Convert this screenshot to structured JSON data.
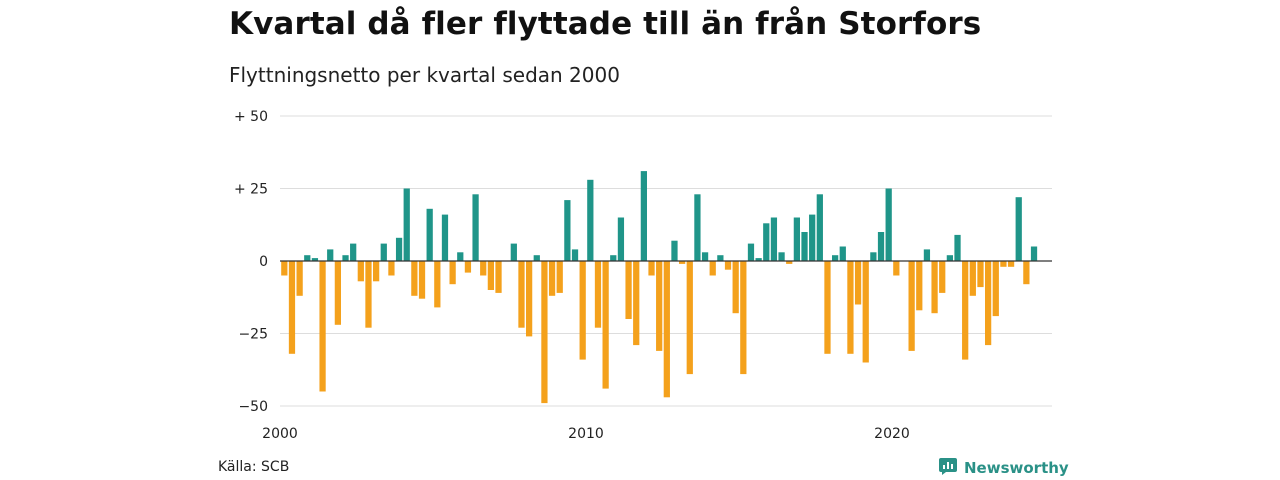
{
  "title": "Kvartal då fler flyttade till än från Storfors",
  "subtitle": "Flyttningsnetto per kvartal sedan 2000",
  "source": "Källa: SCB",
  "brand": {
    "name": "Newsworthy",
    "icon": "newsworthy-logo-icon"
  },
  "colors": {
    "positive": "#1f9589",
    "negative": "#f4a11c",
    "grid": "#dddddd",
    "zero": "#333333",
    "brand": "#2a9187"
  },
  "chart_data": {
    "type": "bar",
    "title": "Kvartal då fler flyttade till än från Storfors",
    "subtitle": "Flyttningsnetto per kvartal sedan 2000",
    "x_start": 2000,
    "periods_per_year": 4,
    "xticks": [
      "2000",
      "2010",
      "2020"
    ],
    "yticks": [
      "+ 50",
      "+ 25",
      "0",
      "−25",
      "−50"
    ],
    "ylim": [
      -50,
      50
    ],
    "grid": true,
    "values": [
      -5,
      -32,
      -12,
      2,
      1,
      -45,
      4,
      -22,
      2,
      6,
      -7,
      -23,
      -7,
      6,
      -5,
      8,
      25,
      -12,
      -13,
      18,
      -16,
      16,
      -8,
      3,
      -4,
      23,
      -5,
      -10,
      -11,
      0,
      6,
      -23,
      -26,
      2,
      -49,
      -12,
      -11,
      21,
      4,
      -34,
      28,
      -23,
      -44,
      2,
      15,
      -20,
      -29,
      31,
      -5,
      -31,
      -47,
      7,
      -1,
      -39,
      23,
      3,
      -5,
      2,
      -3,
      -18,
      -39,
      6,
      1,
      13,
      15,
      3,
      -1,
      15,
      10,
      16,
      23,
      -32,
      2,
      5,
      -32,
      -15,
      -35,
      3,
      10,
      25,
      -5,
      0,
      -31,
      -17,
      4,
      -18,
      -11,
      2,
      9,
      -34,
      -12,
      -9,
      -29,
      -19,
      -2,
      -2,
      22,
      -8,
      5
    ]
  }
}
